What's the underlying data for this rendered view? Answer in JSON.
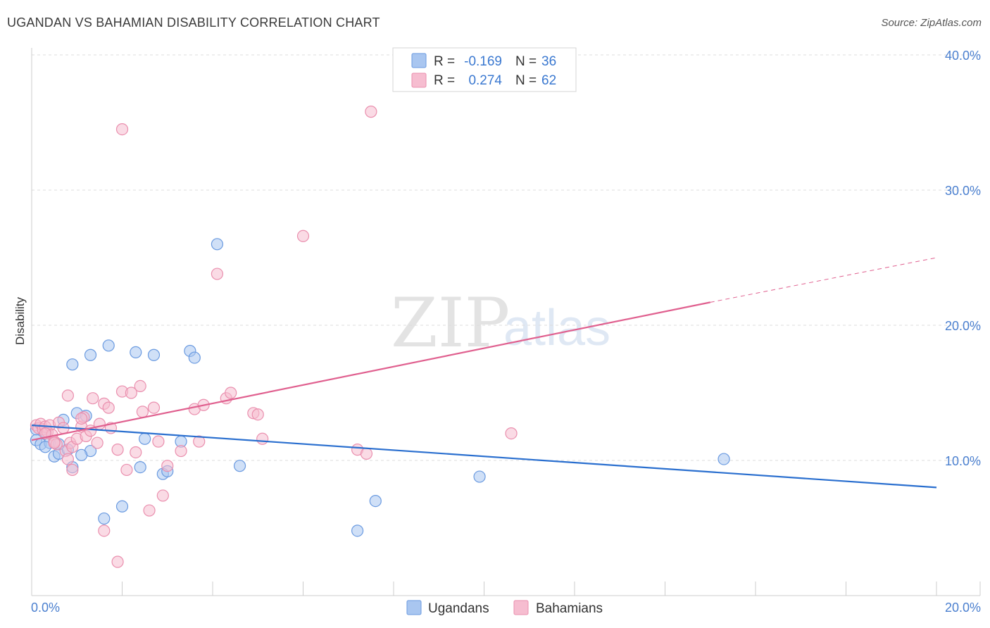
{
  "title": "UGANDAN VS BAHAMIAN DISABILITY CORRELATION CHART",
  "source": "Source: ZipAtlas.com",
  "watermark": {
    "zip": "ZIP",
    "atlas": "atlas"
  },
  "legend_top": {
    "r_label": "R =",
    "n_label": "N =",
    "rows": [
      {
        "r": "-0.169",
        "n": "36"
      },
      {
        "r": "0.274",
        "n": "62"
      }
    ]
  },
  "colors": {
    "ugandans_fill": "#a9c6f0",
    "ugandans_stroke": "#6a9ae0",
    "ugandans_line": "#2a6fcf",
    "bahamians_fill": "#f6bdd0",
    "bahamians_stroke": "#ea8fae",
    "bahamians_line": "#e0608f"
  },
  "chart_data": {
    "type": "scatter",
    "title": "UGANDAN VS BAHAMIAN DISABILITY CORRELATION CHART",
    "xlabel": "",
    "ylabel": "Disability",
    "xlim": [
      0,
      20
    ],
    "ylim": [
      0,
      40
    ],
    "x_tick_labels": [
      "0.0%",
      "20.0%"
    ],
    "y_tick_labels": [
      "10.0%",
      "20.0%",
      "30.0%",
      "40.0%"
    ],
    "legend": [
      "Ugandans",
      "Bahamians"
    ],
    "series": [
      {
        "name": "Ugandans",
        "r": -0.169,
        "n": 36,
        "trend": {
          "x": [
            0,
            20
          ],
          "y": [
            12.6,
            8.0
          ]
        },
        "points": [
          [
            0.1,
            12.3
          ],
          [
            0.1,
            11.5
          ],
          [
            0.2,
            11.2
          ],
          [
            0.3,
            12.1
          ],
          [
            0.4,
            11.3
          ],
          [
            0.5,
            10.3
          ],
          [
            0.6,
            10.5
          ],
          [
            0.7,
            13.0
          ],
          [
            0.8,
            10.8
          ],
          [
            0.9,
            9.5
          ],
          [
            1.0,
            13.5
          ],
          [
            1.2,
            13.3
          ],
          [
            1.3,
            10.7
          ],
          [
            1.1,
            10.4
          ],
          [
            0.9,
            17.1
          ],
          [
            1.3,
            17.8
          ],
          [
            1.7,
            18.5
          ],
          [
            2.3,
            18.0
          ],
          [
            2.7,
            17.8
          ],
          [
            2.0,
            6.6
          ],
          [
            1.6,
            5.7
          ],
          [
            2.4,
            9.5
          ],
          [
            2.5,
            11.6
          ],
          [
            2.9,
            9.0
          ],
          [
            3.0,
            9.2
          ],
          [
            3.3,
            11.4
          ],
          [
            3.5,
            18.1
          ],
          [
            3.6,
            17.6
          ],
          [
            4.1,
            26.0
          ],
          [
            4.6,
            9.6
          ],
          [
            7.2,
            4.8
          ],
          [
            7.6,
            7.0
          ],
          [
            9.9,
            8.8
          ],
          [
            15.3,
            10.1
          ],
          [
            0.3,
            11.0
          ],
          [
            0.6,
            11.2
          ]
        ]
      },
      {
        "name": "Bahamians",
        "r": 0.274,
        "n": 62,
        "trend": {
          "x": [
            0,
            15.0
          ],
          "y": [
            11.5,
            21.7
          ]
        },
        "trend_dashed": {
          "x": [
            15.0,
            20
          ],
          "y": [
            21.7,
            25.0
          ]
        },
        "points": [
          [
            0.1,
            12.6
          ],
          [
            0.15,
            12.4
          ],
          [
            0.2,
            12.7
          ],
          [
            0.25,
            12.3
          ],
          [
            0.3,
            12.5
          ],
          [
            0.35,
            12.1
          ],
          [
            0.4,
            12.6
          ],
          [
            0.45,
            11.9
          ],
          [
            0.5,
            11.4
          ],
          [
            0.55,
            11.2
          ],
          [
            0.6,
            12.8
          ],
          [
            0.7,
            12.4
          ],
          [
            0.75,
            10.7
          ],
          [
            0.8,
            10.1
          ],
          [
            0.85,
            11.3
          ],
          [
            0.9,
            11.0
          ],
          [
            1.0,
            11.6
          ],
          [
            1.1,
            12.5
          ],
          [
            1.15,
            13.2
          ],
          [
            1.2,
            11.8
          ],
          [
            1.3,
            12.2
          ],
          [
            1.35,
            14.6
          ],
          [
            1.45,
            11.3
          ],
          [
            1.5,
            12.7
          ],
          [
            1.6,
            14.2
          ],
          [
            1.7,
            13.9
          ],
          [
            1.75,
            12.4
          ],
          [
            1.9,
            10.8
          ],
          [
            2.0,
            15.1
          ],
          [
            2.1,
            9.3
          ],
          [
            2.2,
            15.0
          ],
          [
            2.3,
            10.6
          ],
          [
            2.4,
            15.5
          ],
          [
            2.45,
            13.6
          ],
          [
            2.6,
            6.3
          ],
          [
            2.7,
            13.9
          ],
          [
            2.8,
            11.4
          ],
          [
            2.9,
            7.4
          ],
          [
            3.0,
            9.6
          ],
          [
            3.3,
            10.7
          ],
          [
            3.6,
            13.8
          ],
          [
            3.7,
            11.4
          ],
          [
            3.8,
            14.1
          ],
          [
            4.1,
            23.8
          ],
          [
            4.3,
            14.6
          ],
          [
            4.4,
            15.0
          ],
          [
            4.9,
            13.5
          ],
          [
            5.0,
            13.4
          ],
          [
            5.1,
            11.6
          ],
          [
            6.0,
            26.6
          ],
          [
            7.2,
            10.8
          ],
          [
            7.4,
            10.5
          ],
          [
            7.5,
            35.8
          ],
          [
            10.6,
            12.0
          ],
          [
            2.0,
            34.5
          ],
          [
            1.6,
            4.8
          ],
          [
            1.9,
            2.5
          ],
          [
            0.8,
            14.8
          ],
          [
            1.1,
            13.1
          ],
          [
            0.5,
            11.3
          ],
          [
            0.3,
            12.0
          ],
          [
            0.9,
            9.3
          ]
        ]
      }
    ]
  }
}
